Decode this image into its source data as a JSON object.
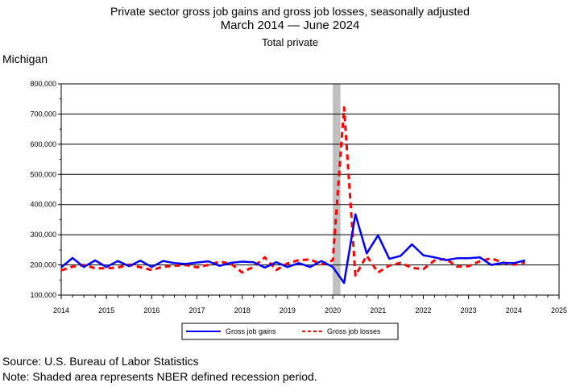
{
  "header": {
    "title_line1": "Private sector gross job gains and gross job losses, seasonally adjusted",
    "title_line2": "March 2014 — June 2024",
    "title_line3": "Total private",
    "region": "Michigan"
  },
  "footer": {
    "source": "Source: U.S. Bureau of Labor Statistics",
    "note": "Note: Shaded area represents NBER defined recession period."
  },
  "chart_data": {
    "type": "line",
    "title": "Private sector gross job gains and gross job losses, seasonally adjusted",
    "subtitle": "March 2014 — June 2024",
    "xlim": [
      2014,
      2025
    ],
    "ylim": [
      100000,
      800000
    ],
    "x_ticks": [
      2014,
      2015,
      2016,
      2017,
      2018,
      2019,
      2020,
      2021,
      2022,
      2023,
      2024,
      2025
    ],
    "x_tick_labels": [
      "2014",
      "2015",
      "2016",
      "2017",
      "2018",
      "2019",
      "2020",
      "2021",
      "2022",
      "2023",
      "2024",
      "2025"
    ],
    "y_ticks": [
      100000,
      200000,
      300000,
      400000,
      500000,
      600000,
      700000,
      800000
    ],
    "y_tick_labels": [
      "100,000",
      "200,000",
      "300,000",
      "400,000",
      "500,000",
      "600,000",
      "700,000",
      "800,000"
    ],
    "grid": "horizontal",
    "legend_position": "bottom",
    "recession": {
      "start": 2020.0,
      "end": 2020.17,
      "color": "#c0c0c0"
    },
    "x": [
      2014.0,
      2014.25,
      2014.5,
      2014.75,
      2015.0,
      2015.25,
      2015.5,
      2015.75,
      2016.0,
      2016.25,
      2016.5,
      2016.75,
      2017.0,
      2017.25,
      2017.5,
      2017.75,
      2018.0,
      2018.25,
      2018.5,
      2018.75,
      2019.0,
      2019.25,
      2019.5,
      2019.75,
      2020.0,
      2020.25,
      2020.5,
      2020.75,
      2021.0,
      2021.25,
      2021.5,
      2021.75,
      2022.0,
      2022.25,
      2022.5,
      2022.75,
      2023.0,
      2023.25,
      2023.5,
      2023.75,
      2024.0,
      2024.25
    ],
    "series": [
      {
        "name": "Gross job gains",
        "color": "#0000ff",
        "dash": "solid",
        "values": [
          192000,
          223000,
          193000,
          215000,
          193000,
          213000,
          196000,
          214000,
          193000,
          213000,
          206000,
          203000,
          208000,
          212000,
          197000,
          207000,
          211000,
          209000,
          191000,
          209000,
          193000,
          206000,
          193000,
          213000,
          193000,
          140000,
          368000,
          238000,
          298000,
          220000,
          230000,
          268000,
          232000,
          225000,
          216000,
          222000,
          222000,
          225000,
          200000,
          207000,
          206000,
          215000
        ]
      },
      {
        "name": "Gross job losses",
        "color": "#ff0000",
        "dash": "dashed",
        "values": [
          182000,
          194000,
          200000,
          189000,
          189000,
          191000,
          201000,
          192000,
          183000,
          194000,
          197000,
          200000,
          192000,
          200000,
          211000,
          204000,
          175000,
          194000,
          225000,
          183000,
          205000,
          216000,
          218000,
          202000,
          215000,
          722000,
          165000,
          230000,
          175000,
          198000,
          207000,
          190000,
          186000,
          215000,
          220000,
          194000,
          196000,
          212000,
          222000,
          208000,
          201000,
          208000
        ]
      }
    ]
  }
}
